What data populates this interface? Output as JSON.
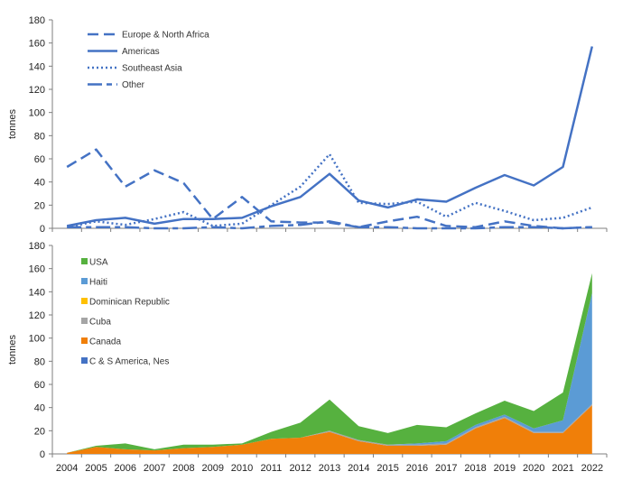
{
  "chart_data": [
    {
      "type": "line",
      "ylabel": "tonnes",
      "ylim": [
        0,
        180
      ],
      "yticks": [
        0,
        20,
        40,
        60,
        80,
        100,
        120,
        140,
        160,
        180
      ],
      "x": [
        2004,
        2005,
        2006,
        2007,
        2008,
        2009,
        2010,
        2011,
        2012,
        2013,
        2014,
        2015,
        2016,
        2017,
        2018,
        2019,
        2020,
        2021,
        2022
      ],
      "legend_position": "top-left",
      "color": "#4472C4",
      "series": [
        {
          "name": "Europe & North Africa",
          "style": "dashed",
          "values": [
            53,
            68,
            36,
            50,
            39,
            8,
            27,
            6,
            5,
            5,
            1,
            6,
            10,
            2,
            1,
            6,
            2,
            0,
            1
          ]
        },
        {
          "name": "Americas",
          "style": "solid",
          "values": [
            2,
            7,
            9,
            4,
            8,
            8,
            9,
            19,
            27,
            47,
            24,
            18,
            25,
            23,
            35,
            46,
            37,
            53,
            157
          ]
        },
        {
          "name": "Southeast Asia",
          "style": "dotted",
          "values": [
            1,
            6,
            3,
            8,
            14,
            2,
            4,
            20,
            36,
            64,
            22,
            21,
            23,
            10,
            22,
            15,
            7,
            9,
            18
          ]
        },
        {
          "name": "Other",
          "style": "longdash",
          "values": [
            1,
            1,
            1,
            0,
            0,
            1,
            0,
            2,
            3,
            6,
            1,
            1,
            0,
            0,
            0,
            1,
            1,
            0,
            1
          ]
        }
      ]
    },
    {
      "type": "area",
      "stacked": true,
      "ylabel": "tonnes",
      "xlabel": "",
      "ylim": [
        0,
        180
      ],
      "yticks": [
        0,
        20,
        40,
        60,
        80,
        100,
        120,
        140,
        160,
        180
      ],
      "categories": [
        "2004",
        "2005",
        "2006",
        "2007",
        "2008",
        "2009",
        "2010",
        "2011",
        "2012",
        "2013",
        "2014",
        "2015",
        "2016",
        "2017",
        "2018",
        "2019",
        "2020",
        "2021",
        "2022"
      ],
      "legend_position": "top-left",
      "legend_order": [
        "USA",
        "Haiti",
        "Dominican Republic",
        "Cuba",
        "Canada",
        "C & S America, Nes"
      ],
      "series": [
        {
          "name": "C & S America, Nes",
          "color": "#4472C4",
          "values": [
            0,
            0,
            0,
            0,
            0,
            0,
            0,
            0,
            0,
            0,
            0,
            0,
            0,
            0,
            0,
            0,
            0,
            0,
            0
          ]
        },
        {
          "name": "Canada",
          "color": "#F07F09",
          "values": [
            1,
            6,
            4,
            3,
            5,
            6,
            8,
            13,
            14,
            19,
            11,
            7,
            7,
            8,
            22,
            31,
            18,
            18,
            42
          ]
        },
        {
          "name": "Cuba",
          "color": "#A5A5A5",
          "values": [
            0,
            0,
            0,
            0,
            0,
            0,
            0,
            0,
            0,
            1,
            1,
            1,
            1,
            1,
            1,
            1,
            1,
            1,
            1
          ]
        },
        {
          "name": "Dominican Republic",
          "color": "#FFC000",
          "values": [
            0,
            0,
            0,
            0,
            0,
            0,
            0,
            0,
            0,
            0,
            0,
            0,
            0,
            0,
            0,
            0,
            0,
            0,
            0
          ]
        },
        {
          "name": "Haiti",
          "color": "#5B9BD5",
          "values": [
            0,
            0,
            0,
            0,
            0,
            0,
            0,
            0,
            0,
            0,
            0,
            0,
            1,
            2,
            2,
            2,
            3,
            10,
            96
          ]
        },
        {
          "name": "USA",
          "color": "#56B13F",
          "values": [
            0,
            1,
            5,
            1,
            3,
            2,
            1,
            6,
            13,
            27,
            12,
            10,
            16,
            12,
            10,
            12,
            15,
            24,
            17
          ]
        }
      ]
    }
  ]
}
